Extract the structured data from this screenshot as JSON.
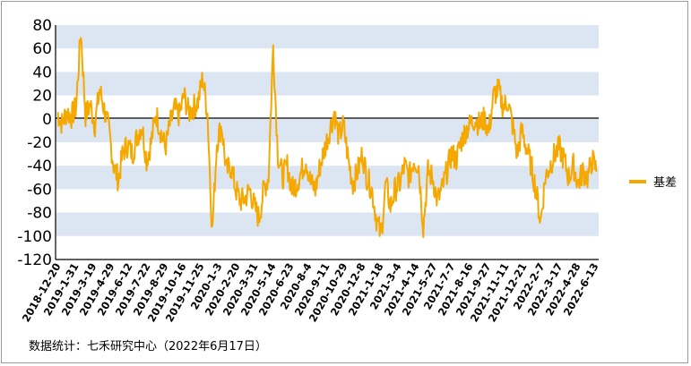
{
  "chart_data": {
    "type": "line",
    "title": "",
    "xlabel": "",
    "ylabel": "",
    "ylim": [
      -120,
      80
    ],
    "yticks": [
      80,
      60,
      40,
      20,
      0,
      -20,
      -40,
      -60,
      -80,
      -100,
      -120
    ],
    "x_tick_labels": [
      "2018-12-20",
      "2019-1-31",
      "2019-3-19",
      "2019-4-29",
      "2019-6-12",
      "2019-7-22",
      "2019-8-29",
      "2019-10-16",
      "2019-11-25",
      "2020-1-3",
      "2020-2-20",
      "2020-3-31",
      "2020-5-14",
      "2020-6-23",
      "2020-8-4",
      "2020-9-11",
      "2020-10-29",
      "2020-12-8",
      "2021-1-18",
      "2021-3-4",
      "2021-4-14",
      "2021-5-27",
      "2021-7-7",
      "2021-8-16",
      "2021-9-27",
      "2021-11-11",
      "2021-12-21",
      "2022-2-7",
      "2022-3-17",
      "2022-4-28",
      "2022-6-13"
    ],
    "grid": "alternating horizontal bands",
    "legend_position": "right",
    "series": [
      {
        "name": "基差",
        "color": "#F5A800",
        "anchor_values": [
          5,
          -4,
          6,
          2,
          10,
          75,
          3,
          12,
          -5,
          25,
          8,
          -10,
          -40,
          -52,
          -28,
          -22,
          -30,
          -15,
          -5,
          -35,
          -20,
          5,
          -10,
          -25,
          -5,
          8,
          3,
          20,
          5,
          10,
          15,
          35,
          5,
          -97,
          -20,
          -5,
          -45,
          -40,
          -60,
          -70,
          -68,
          -60,
          -75,
          -85,
          -60,
          -50,
          63,
          -30,
          -50,
          -40,
          -60,
          -55,
          -45,
          -35,
          -55,
          -60,
          -40,
          -25,
          -10,
          5,
          -15,
          -5,
          -35,
          -55,
          -45,
          -30,
          -50,
          -60,
          -85,
          -100,
          -55,
          -75,
          -60,
          -55,
          -40,
          -50,
          -35,
          -40,
          -92,
          -45,
          -50,
          -70,
          -60,
          -45,
          -30,
          -35,
          -20,
          -10,
          -5,
          0,
          -5,
          0,
          -10,
          20,
          25,
          10,
          15,
          -5,
          -30,
          -10,
          -25,
          -40,
          -60,
          -88,
          -50,
          -40,
          -30,
          -25,
          -35,
          -50,
          -40,
          -55,
          -45,
          -50,
          -35,
          -45
        ]
      }
    ]
  },
  "legend": {
    "label": "基差"
  },
  "source": {
    "text": "数据统计：七禾研究中心（2022年6月17日）"
  },
  "colors": {
    "band": "#DCE6F2",
    "line": "#F5A800",
    "zero_line": "#000000"
  }
}
